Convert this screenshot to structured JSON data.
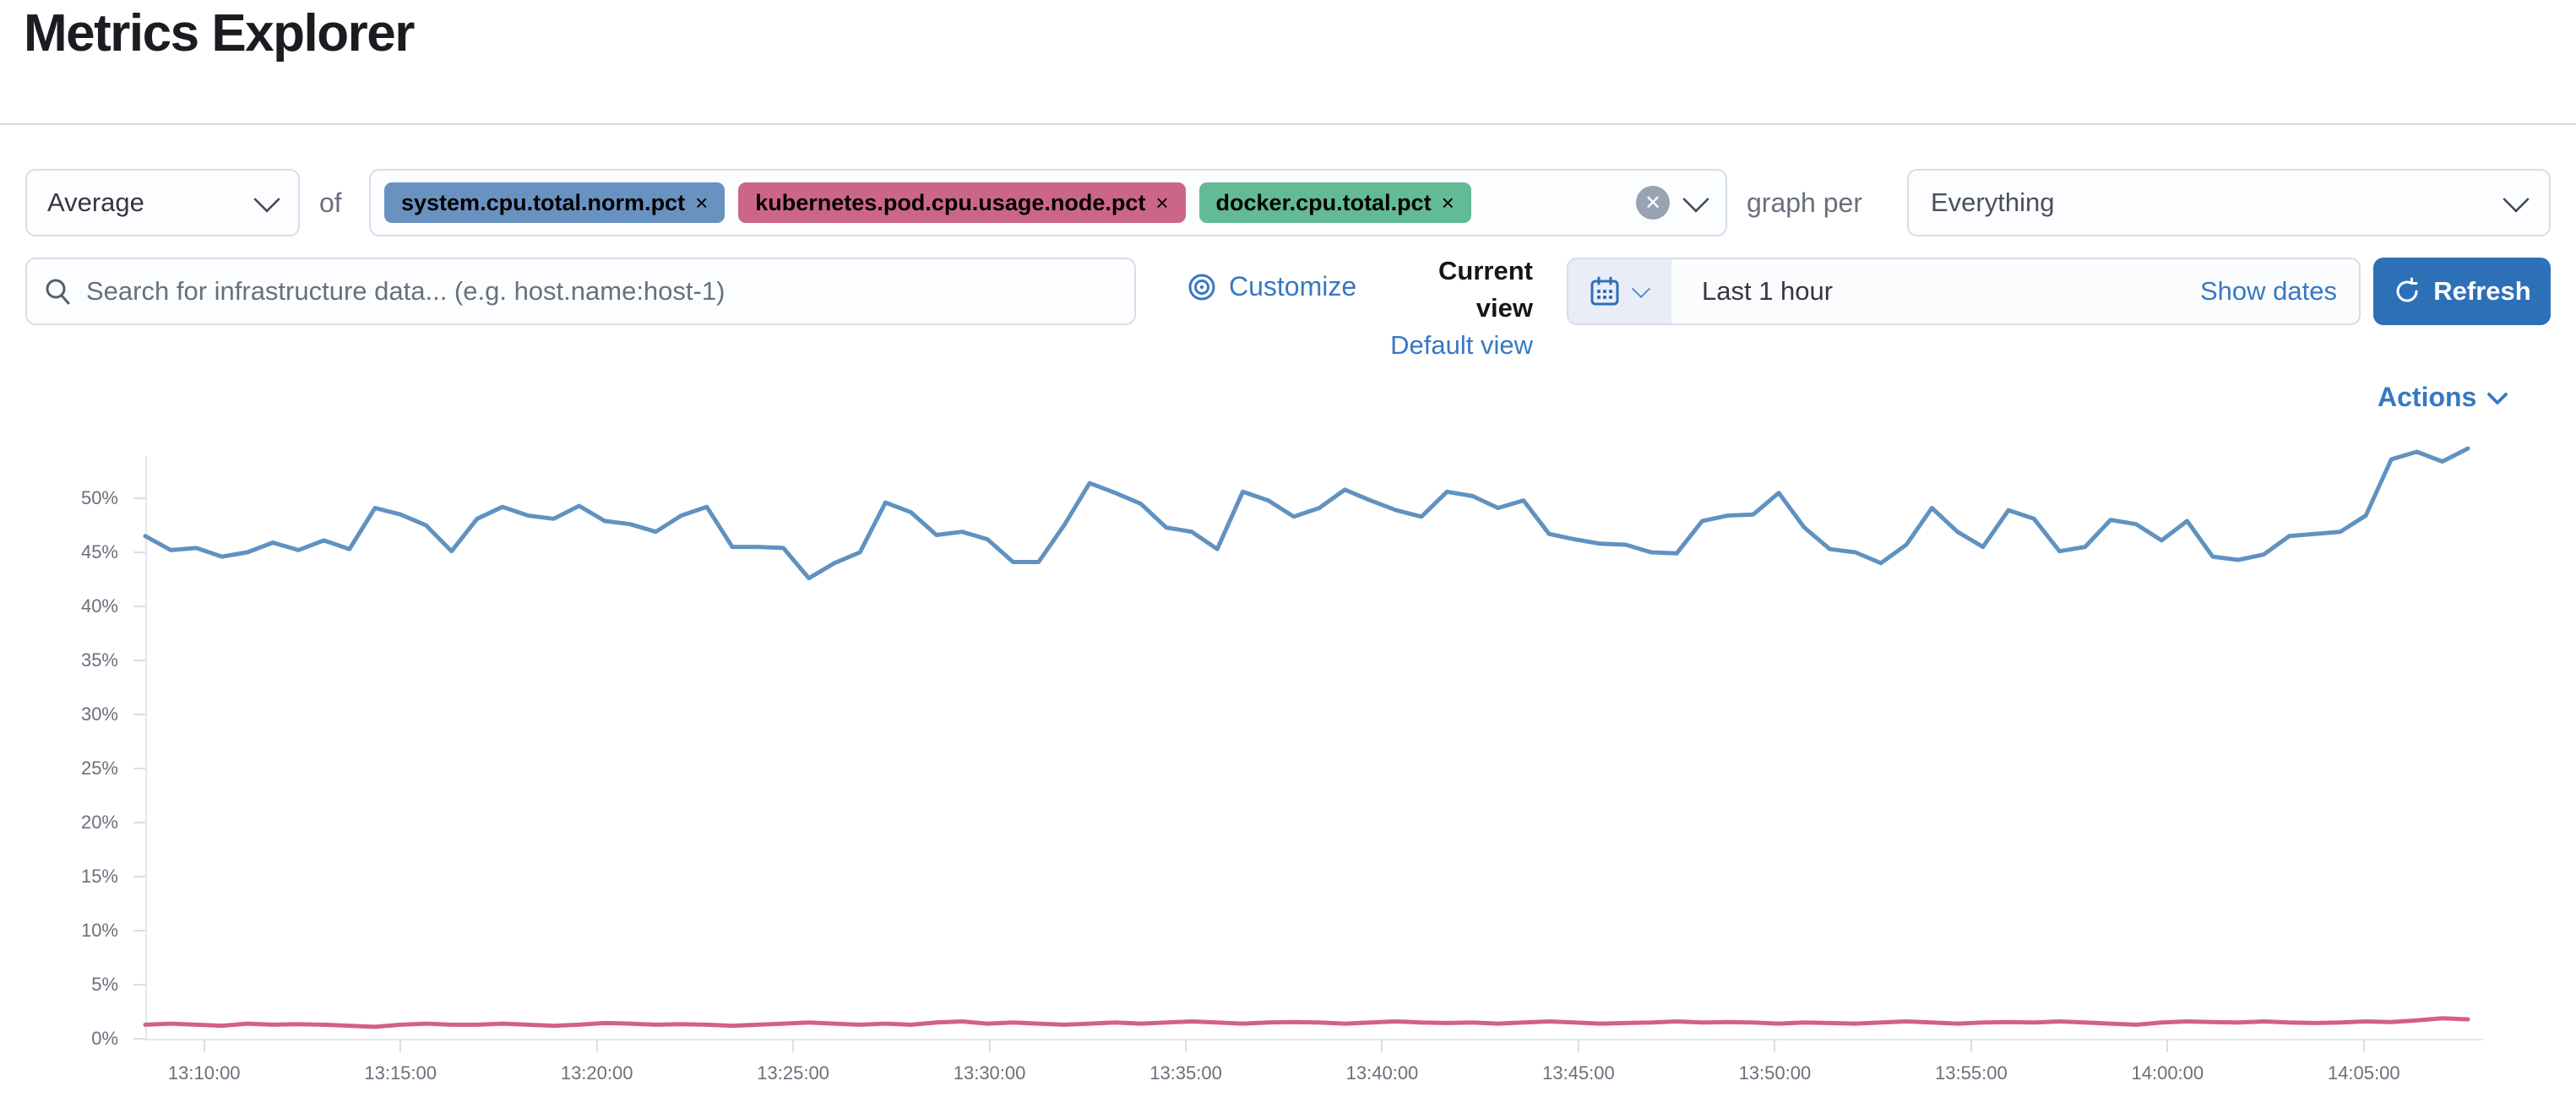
{
  "page": {
    "title": "Metrics Explorer"
  },
  "toolbar": {
    "aggregation": {
      "value": "Average"
    },
    "of_label": "of",
    "metrics": [
      {
        "label": "system.cpu.total.norm.pct",
        "remove_icon": "×",
        "color": "#6992C1"
      },
      {
        "label": "kubernetes.pod.cpu.usage.node.pct",
        "remove_icon": "×",
        "color": "#CC6689"
      },
      {
        "label": "docker.cpu.total.pct",
        "remove_icon": "×",
        "color": "#62BA97"
      }
    ],
    "clear_icon": "✕",
    "graph_per_label": "graph per",
    "group_by": {
      "value": "Everything"
    }
  },
  "search": {
    "placeholder": "Search for infrastructure data... (e.g. host.name:host-1)"
  },
  "view_controls": {
    "customize_label": "Customize",
    "current_view_label": "Current view",
    "default_view_label": "Default view"
  },
  "time_picker": {
    "duration_label": "Last 1 hour",
    "show_dates_label": "Show dates",
    "refresh_label": "Refresh"
  },
  "actions": {
    "label": "Actions"
  },
  "chart_data": {
    "type": "line",
    "grid": false,
    "legend": "none",
    "ylim": [
      0,
      55
    ],
    "y_ticks": [
      "0%",
      "5%",
      "10%",
      "15%",
      "20%",
      "25%",
      "30%",
      "35%",
      "40%",
      "45%",
      "50%"
    ],
    "x_start": "13:08:30",
    "x_interval_sec": 39,
    "x_ticks": [
      "13:10:00",
      "13:15:00",
      "13:20:00",
      "13:25:00",
      "13:30:00",
      "13:35:00",
      "13:40:00",
      "13:45:00",
      "13:50:00",
      "13:55:00",
      "14:00:00",
      "14:05:00"
    ],
    "series": [
      {
        "name": "system.cpu.total.norm.pct",
        "color": "#6092C0",
        "width": 5,
        "values": [
          46.5,
          45.2,
          45.4,
          44.6,
          45.0,
          45.9,
          45.2,
          46.1,
          45.3,
          49.1,
          48.5,
          47.5,
          45.1,
          48.1,
          49.2,
          48.4,
          48.1,
          49.3,
          47.9,
          47.6,
          46.9,
          48.4,
          49.2,
          45.5,
          45.5,
          45.4,
          42.6,
          44.0,
          45.0,
          49.6,
          48.7,
          46.6,
          46.9,
          46.2,
          44.1,
          44.1,
          47.5,
          51.4,
          50.5,
          49.5,
          47.3,
          46.9,
          45.3,
          50.6,
          49.8,
          48.3,
          49.1,
          50.8,
          49.8,
          48.9,
          48.3,
          50.6,
          50.2,
          49.1,
          49.8,
          46.7,
          46.2,
          45.8,
          45.7,
          45.0,
          44.9,
          47.9,
          48.4,
          48.5,
          50.5,
          47.3,
          45.3,
          45.0,
          44.0,
          45.7,
          49.1,
          46.9,
          45.5,
          48.9,
          48.1,
          45.1,
          45.5,
          48.0,
          47.6,
          46.1,
          47.9,
          44.6,
          44.3,
          44.8,
          46.5,
          46.7,
          46.9,
          48.4,
          53.6,
          54.3,
          53.4,
          54.6
        ]
      },
      {
        "name": "kubernetes.pod.cpu.usage.node.pct",
        "color": "#D36086",
        "width": 5,
        "values": [
          1.3,
          1.4,
          1.3,
          1.2,
          1.4,
          1.3,
          1.35,
          1.3,
          1.2,
          1.1,
          1.3,
          1.4,
          1.3,
          1.3,
          1.4,
          1.3,
          1.2,
          1.3,
          1.45,
          1.4,
          1.3,
          1.35,
          1.3,
          1.2,
          1.3,
          1.4,
          1.5,
          1.4,
          1.3,
          1.4,
          1.3,
          1.5,
          1.6,
          1.4,
          1.5,
          1.4,
          1.3,
          1.4,
          1.5,
          1.4,
          1.5,
          1.6,
          1.5,
          1.4,
          1.5,
          1.55,
          1.5,
          1.4,
          1.5,
          1.6,
          1.5,
          1.45,
          1.5,
          1.4,
          1.5,
          1.6,
          1.5,
          1.4,
          1.45,
          1.5,
          1.6,
          1.5,
          1.55,
          1.5,
          1.4,
          1.5,
          1.45,
          1.4,
          1.5,
          1.6,
          1.5,
          1.4,
          1.5,
          1.55,
          1.5,
          1.6,
          1.5,
          1.4,
          1.3,
          1.5,
          1.6,
          1.55,
          1.5,
          1.6,
          1.5,
          1.45,
          1.5,
          1.6,
          1.55,
          1.7,
          1.9,
          1.8
        ]
      }
    ]
  }
}
